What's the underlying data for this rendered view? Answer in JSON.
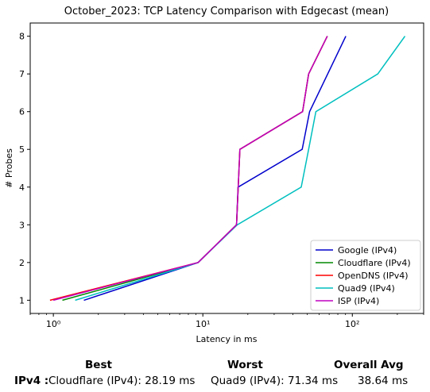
{
  "chart_data": {
    "type": "line",
    "title": "October_2023: TCP Latency Comparison with Edgecast (mean)",
    "xlabel": "Latency in ms",
    "ylabel": "# Probes",
    "xscale": "log",
    "xlim": [
      0.7,
      300
    ],
    "ylim": [
      0.65,
      8.35
    ],
    "xticks": [
      {
        "value": 1,
        "label": "10⁰"
      },
      {
        "value": 10,
        "label": "10¹"
      },
      {
        "value": 100,
        "label": "10²"
      }
    ],
    "yticks": [
      1,
      2,
      3,
      4,
      5,
      6,
      7,
      8
    ],
    "grid": false,
    "legend_position": "bottom-right",
    "series": [
      {
        "name": "Google (IPv4)",
        "color": "#0000cc",
        "x": [
          1.6,
          9.3,
          16.8,
          17.2,
          46.2,
          51.8,
          90.5
        ],
        "y": [
          1,
          2,
          3,
          4,
          5,
          6,
          8
        ]
      },
      {
        "name": "Cloudflare (IPv4)",
        "color": "#008800",
        "x": [
          1.15,
          9.3,
          16.8,
          17.7,
          46.5,
          51.0,
          68.0
        ],
        "y": [
          1,
          2,
          3,
          5,
          6,
          7,
          8
        ]
      },
      {
        "name": "OpenDNS (IPv4)",
        "color": "#ff0000",
        "x": [
          0.95,
          9.3,
          16.8,
          17.7,
          46.5,
          51.0,
          68.0
        ],
        "y": [
          1,
          2,
          3,
          5,
          6,
          7,
          8
        ]
      },
      {
        "name": "Quad9 (IPv4)",
        "color": "#00bfbf",
        "x": [
          1.4,
          9.3,
          17.0,
          45.5,
          51.0,
          57.0,
          148.0,
          225.0
        ],
        "y": [
          1,
          2,
          3,
          4,
          5,
          6,
          7,
          8
        ]
      },
      {
        "name": "ISP (IPv4)",
        "color": "#bf00bf",
        "x": [
          1.0,
          9.3,
          16.8,
          17.7,
          46.5,
          51.0,
          68.0
        ],
        "y": [
          1,
          2,
          3,
          5,
          6,
          7,
          8
        ]
      }
    ]
  },
  "stats": {
    "best_header": "Best",
    "worst_header": "Worst",
    "avg_header": "Overall Avg",
    "row_label": "IPv4 :",
    "best_value": "Cloudflare (IPv4): 28.19 ms",
    "worst_value": "Quad9 (IPv4): 71.34 ms",
    "avg_value": "38.64 ms"
  }
}
